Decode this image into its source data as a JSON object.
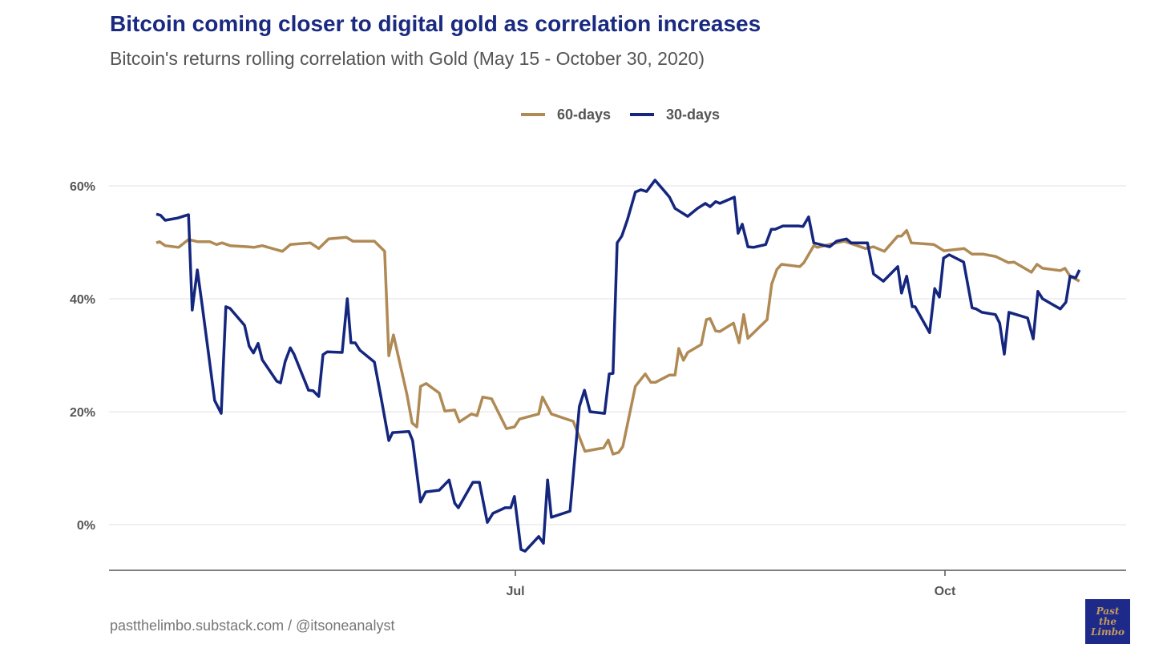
{
  "chart_data": {
    "type": "line",
    "title": "Bitcoin coming closer to digital gold as correlation increases",
    "subtitle": "Bitcoin's returns rolling correlation with Gold (May 15 - October 30, 2020)",
    "xlabel": "",
    "ylabel": "",
    "x_unit": "days relative to Jul 1, 2020",
    "xlim": [
      -87,
      131
    ],
    "ylim": [
      -8,
      70
    ],
    "grid": true,
    "legend_position": "top-center",
    "x_ticks": [
      {
        "value": 0,
        "label": "Jul"
      },
      {
        "value": 92,
        "label": "Oct"
      }
    ],
    "y_ticks": [
      {
        "value": 0,
        "label": "0%"
      },
      {
        "value": 20,
        "label": "20%"
      },
      {
        "value": 40,
        "label": "40%"
      },
      {
        "value": 60,
        "label": "60%"
      }
    ],
    "series": [
      {
        "name": "60-days",
        "color": "#b08a55",
        "points": [
          [
            -76.9,
            49.9
          ],
          [
            -76.2,
            50.1
          ],
          [
            -75,
            49.4
          ],
          [
            -72.1,
            49.1
          ],
          [
            -70,
            50.5
          ],
          [
            -68,
            50.1
          ],
          [
            -65.4,
            50.1
          ],
          [
            -64,
            49.6
          ],
          [
            -62.8,
            49.9
          ],
          [
            -61.1,
            49.4
          ],
          [
            -57.2,
            49.2
          ],
          [
            -56,
            49.1
          ],
          [
            -54.2,
            49.4
          ],
          [
            -49.9,
            48.4
          ],
          [
            -48.2,
            49.6
          ],
          [
            -43.9,
            49.9
          ],
          [
            -42.1,
            48.9
          ],
          [
            -40,
            50.6
          ],
          [
            -36.2,
            50.9
          ],
          [
            -34.8,
            50.2
          ],
          [
            -30.2,
            50.2
          ],
          [
            -28,
            48.4
          ],
          [
            -27.1,
            29.9
          ],
          [
            -26.1,
            33.6
          ],
          [
            -23.2,
            23
          ],
          [
            -22.1,
            18
          ],
          [
            -21.1,
            17.3
          ],
          [
            -20.3,
            24.5
          ],
          [
            -19.1,
            25
          ],
          [
            -16.3,
            23.3
          ],
          [
            -15.1,
            20.1
          ],
          [
            -13,
            20.3
          ],
          [
            -12,
            18.2
          ],
          [
            -9.4,
            19.6
          ],
          [
            -8.2,
            19.3
          ],
          [
            -7,
            22.6
          ],
          [
            -5.1,
            22.3
          ],
          [
            -1.9,
            17
          ],
          [
            -0.2,
            17.3
          ],
          [
            0.9,
            18.7
          ],
          [
            5,
            19.6
          ],
          [
            5.8,
            22.6
          ],
          [
            7.7,
            19.6
          ],
          [
            12.4,
            18.3
          ],
          [
            14.9,
            13
          ],
          [
            18.9,
            13.6
          ],
          [
            19.9,
            15
          ],
          [
            20.9,
            12.5
          ],
          [
            22.1,
            12.8
          ],
          [
            23,
            13.8
          ],
          [
            25.7,
            24.5
          ],
          [
            27.8,
            26.7
          ],
          [
            29,
            25.2
          ],
          [
            30,
            25.2
          ],
          [
            33,
            26.5
          ],
          [
            34.2,
            26.5
          ],
          [
            35,
            31.2
          ],
          [
            36,
            29.1
          ],
          [
            36.9,
            30.5
          ],
          [
            39.8,
            31.9
          ],
          [
            40.9,
            36.3
          ],
          [
            41.7,
            36.5
          ],
          [
            42.9,
            34.3
          ],
          [
            43.8,
            34.2
          ],
          [
            46.7,
            35.7
          ],
          [
            47.9,
            32.2
          ],
          [
            48.9,
            37.2
          ],
          [
            49.8,
            33
          ],
          [
            53.9,
            36.3
          ],
          [
            54.9,
            42.6
          ],
          [
            56,
            45.2
          ],
          [
            57,
            46.1
          ],
          [
            60.9,
            45.7
          ],
          [
            61.8,
            46.4
          ],
          [
            63.9,
            49.4
          ],
          [
            64.7,
            49.1
          ],
          [
            68.7,
            49.9
          ],
          [
            70.4,
            50.2
          ],
          [
            75,
            48.9
          ],
          [
            76.7,
            49.2
          ],
          [
            79,
            48.4
          ],
          [
            81.9,
            51.1
          ],
          [
            82.7,
            51.1
          ],
          [
            83.8,
            52.1
          ],
          [
            84.8,
            49.9
          ],
          [
            89.6,
            49.6
          ],
          [
            91.8,
            48.5
          ],
          [
            96.1,
            48.9
          ],
          [
            97.8,
            47.9
          ],
          [
            100.2,
            47.9
          ],
          [
            102.8,
            47.5
          ],
          [
            105.6,
            46.4
          ],
          [
            106.8,
            46.5
          ],
          [
            110.5,
            44.7
          ],
          [
            111.7,
            46.1
          ],
          [
            112.9,
            45.4
          ],
          [
            116.7,
            45
          ],
          [
            117.7,
            45.4
          ],
          [
            118.8,
            44
          ],
          [
            120.8,
            43.1
          ]
        ]
      },
      {
        "name": "30-days",
        "color": "#14267e",
        "points": [
          [
            -76.9,
            55
          ],
          [
            -76,
            54.8
          ],
          [
            -75,
            53.9
          ],
          [
            -72.3,
            54.3
          ],
          [
            -70.4,
            54.8
          ],
          [
            -70,
            54.9
          ],
          [
            -69.2,
            38
          ],
          [
            -68.1,
            45.1
          ],
          [
            -67.1,
            39
          ],
          [
            -64.4,
            22
          ],
          [
            -63,
            19.7
          ],
          [
            -62,
            38.6
          ],
          [
            -61.1,
            38.3
          ],
          [
            -58,
            35.3
          ],
          [
            -57,
            31.6
          ],
          [
            -56.1,
            30.4
          ],
          [
            -55.1,
            32.1
          ],
          [
            -54.2,
            29.2
          ],
          [
            -51.1,
            25.4
          ],
          [
            -50.3,
            25.1
          ],
          [
            -49.3,
            28.9
          ],
          [
            -48.2,
            31.3
          ],
          [
            -47.4,
            30.2
          ],
          [
            -44.3,
            23.8
          ],
          [
            -43.3,
            23.7
          ],
          [
            -42.1,
            22.7
          ],
          [
            -41.2,
            30.1
          ],
          [
            -40.3,
            30.6
          ],
          [
            -37.1,
            30.5
          ],
          [
            -36,
            40
          ],
          [
            -35.2,
            32.2
          ],
          [
            -34.3,
            32.2
          ],
          [
            -33.3,
            30.9
          ],
          [
            -30.2,
            28.8
          ],
          [
            -28.8,
            22.7
          ],
          [
            -27.1,
            14.9
          ],
          [
            -26.3,
            16.3
          ],
          [
            -22.8,
            16.5
          ],
          [
            -22,
            14.9
          ],
          [
            -20.3,
            4
          ],
          [
            -19.2,
            5.8
          ],
          [
            -16.3,
            6.1
          ],
          [
            -14.2,
            7.9
          ],
          [
            -13,
            3.8
          ],
          [
            -12.2,
            3
          ],
          [
            -9.1,
            7.5
          ],
          [
            -7.7,
            7.5
          ],
          [
            -6,
            0.4
          ],
          [
            -4.8,
            2
          ],
          [
            -2.2,
            3
          ],
          [
            -1,
            3
          ],
          [
            -0.2,
            5
          ],
          [
            1.2,
            -4.4
          ],
          [
            2.1,
            -4.7
          ],
          [
            5,
            -2.1
          ],
          [
            6,
            -3.3
          ],
          [
            6.9,
            7.9
          ],
          [
            7.7,
            1.3
          ],
          [
            11.7,
            2.4
          ],
          [
            13.7,
            20.9
          ],
          [
            14.8,
            23.8
          ],
          [
            16,
            20
          ],
          [
            19.1,
            19.7
          ],
          [
            20.1,
            26.7
          ],
          [
            20.9,
            26.8
          ],
          [
            21.8,
            49.9
          ],
          [
            22.8,
            51.1
          ],
          [
            24,
            54
          ],
          [
            25.7,
            58.9
          ],
          [
            26.9,
            59.3
          ],
          [
            28.1,
            59
          ],
          [
            29.9,
            61
          ],
          [
            32.1,
            58.9
          ],
          [
            33,
            58
          ],
          [
            34.2,
            56
          ],
          [
            36.9,
            54.6
          ],
          [
            39,
            56
          ],
          [
            40.7,
            56.9
          ],
          [
            41.7,
            56.3
          ],
          [
            42.9,
            57.2
          ],
          [
            43.8,
            56.9
          ],
          [
            46.9,
            58
          ],
          [
            47.7,
            51.6
          ],
          [
            48.6,
            53.2
          ],
          [
            49.8,
            49.2
          ],
          [
            51,
            49.1
          ],
          [
            53.6,
            49.6
          ],
          [
            54.8,
            52.3
          ],
          [
            55.6,
            52.3
          ],
          [
            57.3,
            52.9
          ],
          [
            60.6,
            52.9
          ],
          [
            61.6,
            52.8
          ],
          [
            62.8,
            54.5
          ],
          [
            63.9,
            49.9
          ],
          [
            67.3,
            49.2
          ],
          [
            68.8,
            50.2
          ],
          [
            70.9,
            50.6
          ],
          [
            71.9,
            49.9
          ],
          [
            75.4,
            49.9
          ],
          [
            76.7,
            44.4
          ],
          [
            78.8,
            43.1
          ],
          [
            81.9,
            45.7
          ],
          [
            82.7,
            41
          ],
          [
            83.8,
            44
          ],
          [
            85,
            38.6
          ],
          [
            85.6,
            38.6
          ],
          [
            88.7,
            34
          ],
          [
            89.8,
            41.8
          ],
          [
            90.8,
            40.3
          ],
          [
            91.7,
            47.2
          ],
          [
            92.9,
            47.8
          ],
          [
            96,
            46.5
          ],
          [
            97.8,
            38.4
          ],
          [
            98.7,
            38.2
          ],
          [
            99.9,
            37.6
          ],
          [
            102.8,
            37.2
          ],
          [
            103.7,
            35.7
          ],
          [
            104.7,
            30.2
          ],
          [
            105.7,
            37.6
          ],
          [
            109.7,
            36.6
          ],
          [
            110.9,
            32.9
          ],
          [
            111.9,
            41.3
          ],
          [
            112.9,
            40
          ],
          [
            116.7,
            38.2
          ],
          [
            117.9,
            39.4
          ],
          [
            118.8,
            44
          ],
          [
            120,
            43.7
          ],
          [
            120.8,
            45.1
          ]
        ]
      }
    ]
  },
  "footer": "pastthelimbo.substack.com / @itsoneanalyst",
  "logo_text": "Past the Limbo"
}
